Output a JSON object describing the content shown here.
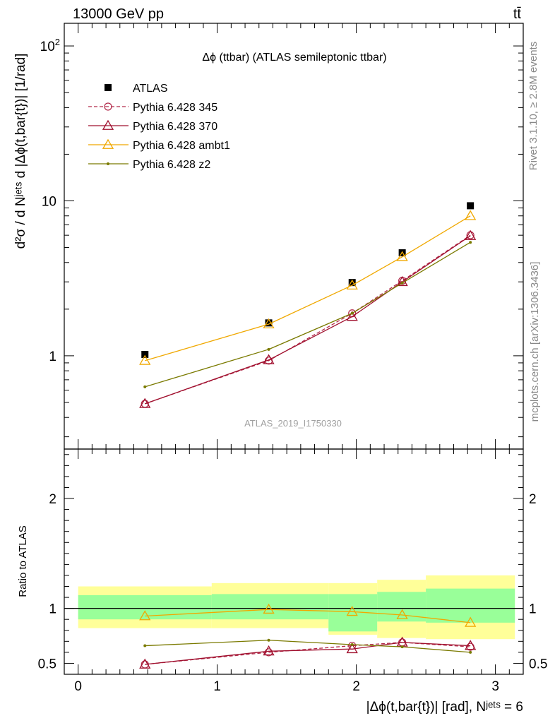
{
  "header": {
    "left": "13000 GeV pp",
    "right": "tt̄"
  },
  "side": {
    "rivet": "Rivet 3.1.10, ≥ 2.8M events",
    "mcplots": "mcplots.cern.ch [arXiv:1306.3436]"
  },
  "chart_data": [
    {
      "type": "line",
      "title": "Δϕ (ttbar) (ATLAS semileptonic ttbar)",
      "ylabel": "d²σ / d Nʲᵉᵗˢ d |Δϕ(t,bar{t})| [1/rad]",
      "yscale": "log",
      "ylim": [
        0.25,
        140
      ],
      "xlim": [
        -0.1,
        3.2
      ],
      "yticks": [
        {
          "v": 1,
          "label": "1"
        },
        {
          "v": 10,
          "label": "10"
        },
        {
          "v": 100,
          "label": "10²"
        }
      ],
      "watermark": "ATLAS_2019_I1750330",
      "legend_position": "top-left",
      "x": [
        0.48,
        1.37,
        1.97,
        2.33,
        2.82
      ],
      "series": [
        {
          "name": "ATLAS",
          "color": "#000000",
          "marker": "square",
          "line": "none",
          "values": [
            1.02,
            1.63,
            2.97,
            4.62,
            9.3
          ]
        },
        {
          "name": "Pythia 6.428 345",
          "color": "#b22a4a",
          "marker": "circle",
          "line": "dashed",
          "values": [
            0.49,
            0.93,
            1.88,
            3.05,
            6.0
          ]
        },
        {
          "name": "Pythia 6.428 370",
          "color": "#a0102e",
          "marker": "triangle",
          "line": "solid",
          "values": [
            0.49,
            0.94,
            1.79,
            3.0,
            5.95
          ]
        },
        {
          "name": "Pythia 6.428 ambt1",
          "color": "#f0a800",
          "marker": "triangle",
          "line": "solid",
          "values": [
            0.93,
            1.6,
            2.85,
            4.35,
            8.0
          ]
        },
        {
          "name": "Pythia 6.428 z2",
          "color": "#7a7a00",
          "marker": "dot",
          "line": "solid",
          "values": [
            0.63,
            1.1,
            1.88,
            2.95,
            5.4
          ]
        }
      ]
    },
    {
      "type": "line",
      "ylabel": "Ratio to ATLAS",
      "xlabel": "|Δϕ(t,bar{t})| [rad], Nʲᵉᵗˢ = 6",
      "ylim": [
        0.4,
        2.45
      ],
      "xlim": [
        -0.1,
        3.2
      ],
      "yticks": [
        {
          "v": 0.5,
          "label": "0.5"
        },
        {
          "v": 1,
          "label": "1"
        },
        {
          "v": 2,
          "label": "2"
        }
      ],
      "xticks": [
        {
          "v": 0,
          "label": "0"
        },
        {
          "v": 1,
          "label": "1"
        },
        {
          "v": 2,
          "label": "2"
        },
        {
          "v": 3,
          "label": "3"
        }
      ],
      "bins": [
        {
          "x0": 0.0,
          "x1": 0.96,
          "g": [
            0.9,
            1.12
          ],
          "y": [
            0.82,
            1.2
          ]
        },
        {
          "x0": 0.96,
          "x1": 1.8,
          "g": [
            0.9,
            1.13
          ],
          "y": [
            0.82,
            1.23
          ]
        },
        {
          "x0": 1.8,
          "x1": 2.15,
          "g": [
            0.79,
            1.13
          ],
          "y": [
            0.76,
            1.23
          ]
        },
        {
          "x0": 2.15,
          "x1": 2.5,
          "g": [
            0.88,
            1.15
          ],
          "y": [
            0.73,
            1.26
          ]
        },
        {
          "x0": 2.5,
          "x1": 3.14,
          "g": [
            0.87,
            1.18
          ],
          "y": [
            0.72,
            1.3
          ]
        }
      ],
      "series": [
        {
          "name": "Pythia 6.428 345",
          "color": "#b22a4a",
          "marker": "circle",
          "line": "dashed",
          "values": [
            0.49,
            0.6,
            0.66,
            0.69,
            0.65
          ]
        },
        {
          "name": "Pythia 6.428 370",
          "color": "#a0102e",
          "marker": "triangle",
          "line": "solid",
          "values": [
            0.49,
            0.61,
            0.63,
            0.69,
            0.66
          ]
        },
        {
          "name": "Pythia 6.428 ambt1",
          "color": "#f0a800",
          "marker": "triangle",
          "line": "solid",
          "values": [
            0.93,
            0.99,
            0.97,
            0.94,
            0.87
          ]
        },
        {
          "name": "Pythia 6.428 z2",
          "color": "#7a7a00",
          "marker": "dot",
          "line": "solid",
          "values": [
            0.66,
            0.71,
            0.67,
            0.65,
            0.6
          ]
        }
      ]
    }
  ]
}
